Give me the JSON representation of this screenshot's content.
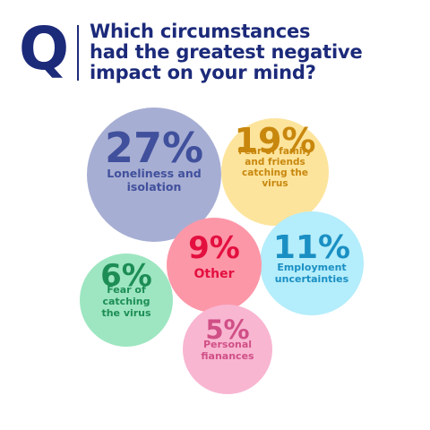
{
  "header": {
    "logo_letter": "Q",
    "question_lines": [
      "Which circumstances",
      "had the greatest negative",
      "impact on your mind?"
    ]
  },
  "colors": {
    "brand_navy": "#1c2a7a"
  },
  "chart_data": {
    "type": "bubble",
    "title": "Which circumstances had the greatest negative impact on your mind?",
    "unit": "%",
    "items": [
      {
        "value": 27,
        "display": "27%",
        "label_lines": [
          "Loneliness and",
          "isolation"
        ],
        "fill": "#a7aed3",
        "text_color": "#40509c"
      },
      {
        "value": 19,
        "display": "19%",
        "label_lines": [
          "Fear of family",
          "and friends",
          "catching the",
          "virus"
        ],
        "fill": "#fde49c",
        "text_color": "#c8870d"
      },
      {
        "value": 11,
        "display": "11%",
        "label_lines": [
          "Employment",
          "uncertainties"
        ],
        "fill": "#b4edfb",
        "text_color": "#1a8fc3"
      },
      {
        "value": 9,
        "display": "9%",
        "label_lines": [
          "Other"
        ],
        "fill": "#fc97a8",
        "text_color": "#e3103f"
      },
      {
        "value": 6,
        "display": "6%",
        "label_lines": [
          "Fear of",
          "catching",
          "the virus"
        ],
        "fill": "#9de6c1",
        "text_color": "#1d8d55"
      },
      {
        "value": 5,
        "display": "5%",
        "label_lines": [
          "Personal",
          "fianances"
        ],
        "fill": "#f8b6d1",
        "text_color": "#d04f86"
      }
    ]
  }
}
